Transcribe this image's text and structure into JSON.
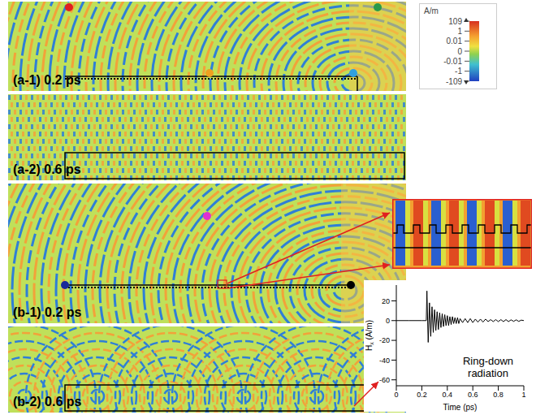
{
  "panels": [
    {
      "label": "(a-1) 0.2 ps"
    },
    {
      "label": "(a-2) 0.6 ps"
    },
    {
      "label": "(b-1) 0.2 ps"
    },
    {
      "label": "(b-2) 0.6 ps"
    }
  ],
  "colorbar": {
    "unit": "A/m",
    "ticks": [
      109,
      1,
      0.01,
      0,
      -0.01,
      -1,
      -109
    ]
  },
  "chart_data": {
    "type": "line",
    "annotation": "Ring-down radiation",
    "x_label": "Time (ps)",
    "y_label": "Hx (A/m)",
    "xlim": [
      0,
      1
    ],
    "xticks": [
      0,
      0.2,
      0.4,
      0.6,
      0.8,
      1
    ],
    "ylim": [
      -66,
      36
    ],
    "yticks": [
      -60,
      -40,
      -20,
      0,
      20
    ],
    "color": "#000000",
    "x": [
      0,
      0.1,
      0.2,
      0.235,
      0.24,
      0.25,
      0.26,
      0.27,
      0.28,
      0.29,
      0.3,
      0.31,
      0.32,
      0.33,
      0.34,
      0.35,
      0.36,
      0.37,
      0.38,
      0.39,
      0.4,
      0.41,
      0.42,
      0.43,
      0.44,
      0.45,
      0.46,
      0.47,
      0.48,
      0.49,
      0.5,
      0.52,
      0.54,
      0.56,
      0.58,
      0.6,
      0.62,
      0.64,
      0.66,
      0.68,
      0.7,
      0.72,
      0.74,
      0.76,
      0.78,
      0.8,
      0.82,
      0.84,
      0.86,
      0.88,
      0.9,
      0.92,
      0.94,
      0.96,
      0.98,
      1
    ],
    "values": [
      0,
      0,
      0,
      0,
      30,
      -22,
      18,
      -16,
      14,
      -12,
      11,
      -10,
      9,
      -9,
      8,
      -7,
      7,
      -6,
      6,
      -5,
      5,
      -5,
      4,
      -4,
      4,
      -3,
      3,
      -3,
      3,
      -3,
      2,
      -2,
      2,
      -2,
      2,
      -2,
      1.5,
      -1.5,
      1.5,
      -1.5,
      1.5,
      -1,
      1,
      -1,
      1,
      -1,
      1,
      -1,
      1,
      -1,
      0.8,
      -0.8,
      0.8,
      -0.8,
      0.5,
      0
    ]
  }
}
